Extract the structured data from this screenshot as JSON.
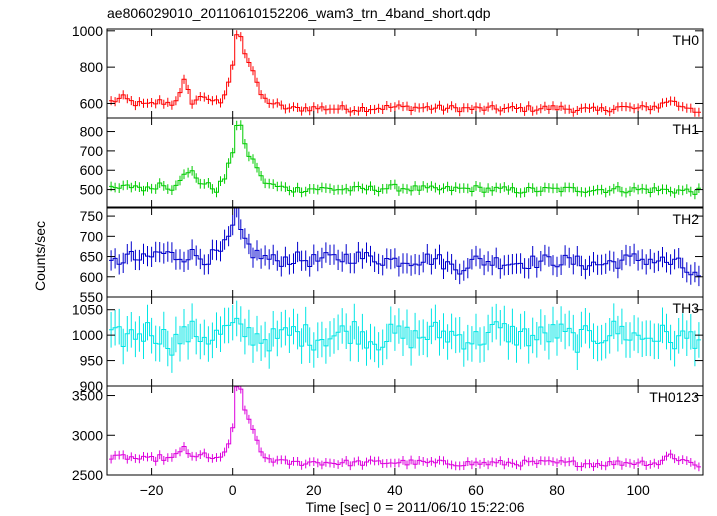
{
  "chart_data": {
    "type": "line",
    "title": "ae806029010_20110610152206_wam3_trn_4band_short.qdp",
    "xlabel": "Time [sec] 0 = 2011/06/10 15:22:06",
    "ylabel": "Counts/sec",
    "xlim": [
      -31,
      116
    ],
    "x_ticks": [
      -20,
      0,
      20,
      40,
      60,
      80,
      100
    ],
    "x_tick_labels": [
      "−20",
      "0",
      "20",
      "40",
      "60",
      "80",
      "100"
    ],
    "grid": false,
    "bin_width": 1,
    "series": [
      {
        "name": "TH0",
        "color": "#ff0000",
        "ylim": [
          520,
          1010
        ],
        "y_ticks": [
          600,
          800,
          1000
        ],
        "y_tick_labels": [
          "600",
          "800",
          "1000"
        ],
        "error": 25,
        "x": [
          -30,
          -27,
          -24,
          -21,
          -18,
          -15,
          -13,
          -12,
          -10,
          -7,
          -5,
          -3,
          -2,
          -1,
          0,
          1,
          2,
          3,
          4,
          5,
          6,
          7,
          8,
          10,
          12,
          15,
          20,
          30,
          40,
          50,
          60,
          70,
          80,
          90,
          95,
          100,
          105,
          108,
          110,
          113,
          115
        ],
        "values": [
          610,
          630,
          600,
          590,
          610,
          600,
          650,
          720,
          610,
          640,
          620,
          590,
          650,
          720,
          800,
          990,
          980,
          880,
          830,
          780,
          700,
          650,
          620,
          600,
          580,
          570,
          575,
          570,
          580,
          575,
          570,
          570,
          575,
          560,
          580,
          570,
          585,
          620,
          590,
          580,
          550
        ]
      },
      {
        "name": "TH1",
        "color": "#00cc00",
        "ylim": [
          410,
          870
        ],
        "y_ticks": [
          500,
          600,
          700,
          800
        ],
        "y_tick_labels": [
          "500",
          "600",
          "700",
          "800"
        ],
        "error": 25,
        "x": [
          -30,
          -27,
          -24,
          -21,
          -18,
          -15,
          -13,
          -11,
          -10,
          -8,
          -6,
          -4,
          -2,
          -1,
          0,
          1,
          2,
          3,
          4,
          5,
          6,
          7,
          8,
          10,
          12,
          15,
          20,
          30,
          40,
          50,
          60,
          70,
          80,
          90,
          100,
          110,
          115
        ],
        "values": [
          500,
          510,
          520,
          500,
          530,
          510,
          560,
          580,
          590,
          540,
          520,
          500,
          560,
          620,
          700,
          840,
          830,
          720,
          680,
          650,
          620,
          560,
          540,
          520,
          510,
          500,
          505,
          500,
          510,
          500,
          505,
          495,
          500,
          500,
          500,
          495,
          490
        ]
      },
      {
        "name": "TH2",
        "color": "#0000cc",
        "ylim": [
          550,
          770
        ],
        "y_ticks": [
          550,
          600,
          650,
          700,
          750
        ],
        "y_tick_labels": [
          "550",
          "600",
          "650",
          "700",
          "750"
        ],
        "error": 25,
        "x": [
          -30,
          -26,
          -22,
          -18,
          -14,
          -10,
          -6,
          -3,
          -1,
          0,
          1,
          2,
          3,
          5,
          7,
          10,
          15,
          20,
          30,
          40,
          50,
          55,
          60,
          70,
          80,
          90,
          100,
          105,
          110,
          114
        ],
        "values": [
          630,
          650,
          640,
          660,
          650,
          655,
          645,
          660,
          690,
          720,
          760,
          700,
          690,
          660,
          650,
          640,
          645,
          640,
          650,
          640,
          645,
          620,
          640,
          635,
          640,
          630,
          645,
          640,
          630,
          600
        ]
      },
      {
        "name": "TH3",
        "color": "#00e5e5",
        "ylim": [
          900,
          1075
        ],
        "y_ticks": [
          900,
          950,
          1000,
          1050
        ],
        "y_tick_labels": [
          "900",
          "950",
          "1000",
          "1050"
        ],
        "error": 35,
        "x": [
          -30,
          -25,
          -20,
          -15,
          -10,
          -5,
          0,
          5,
          10,
          15,
          20,
          25,
          30,
          35,
          40,
          45,
          50,
          55,
          60,
          65,
          70,
          75,
          80,
          85,
          90,
          95,
          100,
          105,
          110,
          115
        ],
        "values": [
          990,
          1000,
          1010,
          985,
          1005,
          995,
          1015,
          1000,
          990,
          1005,
          995,
          1000,
          1010,
          990,
          1000,
          995,
          1005,
          1000,
          990,
          1010,
          1000,
          995,
          1005,
          990,
          1000,
          1010,
          995,
          1000,
          990,
          1000
        ]
      },
      {
        "name": "TH0123",
        "color": "#dd00dd",
        "ylim": [
          2500,
          3620
        ],
        "y_ticks": [
          2500,
          3000,
          3500
        ],
        "y_tick_labels": [
          "2500",
          "3000",
          "3500"
        ],
        "error": 55,
        "x": [
          -30,
          -27,
          -24,
          -21,
          -18,
          -15,
          -13,
          -12,
          -10,
          -7,
          -5,
          -3,
          -2,
          -1,
          0,
          1,
          2,
          3,
          4,
          5,
          6,
          7,
          8,
          10,
          12,
          15,
          20,
          30,
          40,
          50,
          60,
          70,
          80,
          90,
          100,
          105,
          108,
          110,
          113,
          115
        ],
        "values": [
          2700,
          2730,
          2710,
          2690,
          2720,
          2700,
          2780,
          2870,
          2700,
          2760,
          2720,
          2690,
          2780,
          2900,
          3100,
          3580,
          3550,
          3300,
          3200,
          3100,
          2900,
          2780,
          2720,
          2690,
          2660,
          2650,
          2660,
          2650,
          2660,
          2650,
          2645,
          2650,
          2650,
          2640,
          2660,
          2650,
          2760,
          2700,
          2660,
          2620
        ]
      }
    ]
  }
}
